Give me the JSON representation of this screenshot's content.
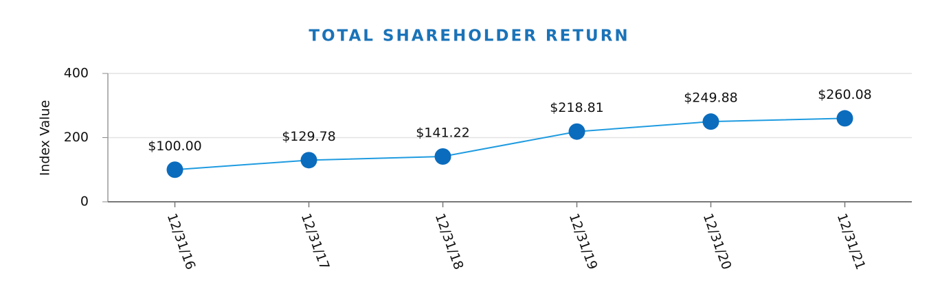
{
  "chart_data": {
    "type": "line",
    "title": "TOTAL SHAREHOLDER RETURN",
    "y_label": "Index Value",
    "categories": [
      "12/31/16",
      "12/31/17",
      "12/31/18",
      "12/31/19",
      "12/31/20",
      "12/31/21"
    ],
    "values": [
      100.0,
      129.78,
      141.22,
      218.81,
      249.88,
      260.08
    ],
    "value_labels": [
      "$100.00",
      "$129.78",
      "$141.22",
      "$218.81",
      "$249.88",
      "$260.08"
    ],
    "line_color": "#1e9be0",
    "marker_color": "#0b6cbd",
    "ylim": [
      0,
      400
    ],
    "yticks": [
      0,
      200,
      400
    ],
    "grid": true
  }
}
